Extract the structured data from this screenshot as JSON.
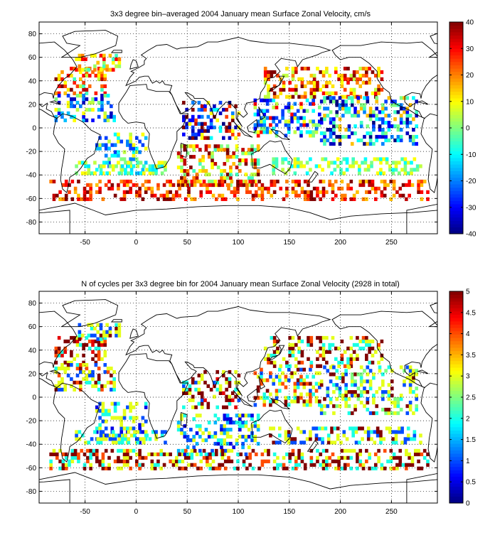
{
  "chart_data": [
    {
      "type": "heatmap",
      "title": "3x3 degree bin–averaged 2004 January mean Surface Zonal Velocity, cm/s",
      "xlim": [
        -95,
        295
      ],
      "ylim": [
        -90,
        90
      ],
      "xticks": [
        -50,
        0,
        50,
        100,
        150,
        200,
        250
      ],
      "yticks": [
        -80,
        -60,
        -40,
        -20,
        0,
        20,
        40,
        60,
        80
      ],
      "grid": true,
      "colorbar": {
        "min": -40,
        "max": 40,
        "ticks": [
          -40,
          -30,
          -20,
          -10,
          0,
          10,
          20,
          30,
          40
        ],
        "colormap": "jet"
      },
      "bin_size_deg": 3,
      "regions": [
        {
          "lon": [
            -80,
            -30
          ],
          "lat": [
            28,
            50
          ],
          "values": [
            18,
            28,
            35,
            10,
            22,
            40,
            15,
            5,
            30,
            25,
            -5,
            12
          ]
        },
        {
          "lon": [
            -60,
            -15
          ],
          "lat": [
            48,
            62
          ],
          "values": [
            5,
            15,
            30,
            2,
            10,
            -5,
            20
          ]
        },
        {
          "lon": [
            -80,
            -20
          ],
          "lat": [
            5,
            28
          ],
          "values": [
            -25,
            -10,
            5,
            -30,
            -15,
            0,
            10,
            -20,
            -35
          ]
        },
        {
          "lon": [
            -40,
            10
          ],
          "lat": [
            -40,
            -5
          ],
          "values": [
            -10,
            -20,
            0,
            5,
            -25,
            -15,
            10
          ]
        },
        {
          "lon": [
            -60,
            30
          ],
          "lat": [
            -40,
            -30
          ],
          "values": [
            -5,
            5,
            10,
            -10,
            0,
            8,
            -12
          ]
        },
        {
          "lon": [
            45,
            100
          ],
          "lat": [
            -10,
            22
          ],
          "values": [
            -35,
            -40,
            -20,
            35,
            40,
            -30,
            10,
            -10,
            25,
            -25
          ]
        },
        {
          "lon": [
            40,
            120
          ],
          "lat": [
            -50,
            -15
          ],
          "values": [
            5,
            20,
            30,
            -5,
            35,
            15,
            40,
            0,
            10
          ]
        },
        {
          "lon": [
            115,
            180
          ],
          "lat": [
            -8,
            25
          ],
          "values": [
            -30,
            -35,
            -20,
            0,
            10,
            5,
            -10,
            -25,
            30
          ]
        },
        {
          "lon": [
            125,
            240
          ],
          "lat": [
            25,
            50
          ],
          "values": [
            20,
            30,
            10,
            15,
            40,
            25,
            5,
            35,
            12
          ]
        },
        {
          "lon": [
            180,
            275
          ],
          "lat": [
            -15,
            25
          ],
          "values": [
            -20,
            -35,
            -25,
            -10,
            -30,
            0,
            -5,
            15,
            -40
          ]
        },
        {
          "lon": [
            130,
            280
          ],
          "lat": [
            -40,
            -25
          ],
          "values": [
            -5,
            5,
            0,
            10,
            -10,
            8
          ]
        },
        {
          "lon": [
            -85,
            285
          ],
          "lat": [
            -62,
            -45
          ],
          "values": [
            25,
            35,
            30,
            20,
            40,
            15
          ]
        }
      ]
    },
    {
      "type": "heatmap",
      "title": "N of cycles per 3x3 degree bin for 2004 January mean Surface Zonal Velocity (2928 in total)",
      "xlim": [
        -95,
        295
      ],
      "ylim": [
        -90,
        90
      ],
      "xticks": [
        -50,
        0,
        50,
        100,
        150,
        200,
        250
      ],
      "yticks": [
        -80,
        -60,
        -40,
        -20,
        0,
        20,
        40,
        60,
        80
      ],
      "grid": true,
      "colorbar": {
        "min": 0,
        "max": 5,
        "ticks": [
          0,
          0.5,
          1,
          1.5,
          2,
          2.5,
          3,
          3.5,
          4,
          4.5,
          5
        ],
        "colormap": "jet"
      },
      "bin_size_deg": 3,
      "regions": [
        {
          "lon": [
            -80,
            -30
          ],
          "lat": [
            28,
            50
          ],
          "values": [
            5,
            4.5,
            3,
            5,
            2,
            3,
            4,
            5
          ]
        },
        {
          "lon": [
            -60,
            -15
          ],
          "lat": [
            48,
            62
          ],
          "values": [
            3,
            2,
            5,
            3,
            1
          ]
        },
        {
          "lon": [
            -80,
            -20
          ],
          "lat": [
            5,
            28
          ],
          "values": [
            3,
            2,
            5,
            3,
            1,
            4
          ]
        },
        {
          "lon": [
            -40,
            10
          ],
          "lat": [
            -40,
            -5
          ],
          "values": [
            1,
            2,
            3,
            0.5,
            3
          ]
        },
        {
          "lon": [
            -60,
            30
          ],
          "lat": [
            -40,
            -30
          ],
          "values": [
            2,
            3,
            1,
            3,
            2
          ]
        },
        {
          "lon": [
            45,
            100
          ],
          "lat": [
            -10,
            22
          ],
          "values": [
            5,
            4.5,
            5,
            3,
            1,
            2,
            5,
            3
          ]
        },
        {
          "lon": [
            40,
            120
          ],
          "lat": [
            -50,
            -15
          ],
          "values": [
            1,
            2,
            3,
            0.5,
            3,
            1.5
          ]
        },
        {
          "lon": [
            115,
            180
          ],
          "lat": [
            -8,
            25
          ],
          "values": [
            3,
            5,
            2,
            1,
            3,
            4
          ]
        },
        {
          "lon": [
            125,
            240
          ],
          "lat": [
            25,
            50
          ],
          "values": [
            5,
            4,
            3,
            2,
            5,
            3
          ]
        },
        {
          "lon": [
            180,
            275
          ],
          "lat": [
            -15,
            25
          ],
          "values": [
            3,
            2,
            1,
            3,
            2.5,
            5
          ]
        },
        {
          "lon": [
            130,
            280
          ],
          "lat": [
            -40,
            -25
          ],
          "values": [
            5,
            3,
            2,
            1,
            3
          ]
        },
        {
          "lon": [
            -85,
            285
          ],
          "lat": [
            -62,
            -45
          ],
          "values": [
            4,
            5,
            3,
            2,
            5
          ]
        }
      ]
    }
  ]
}
